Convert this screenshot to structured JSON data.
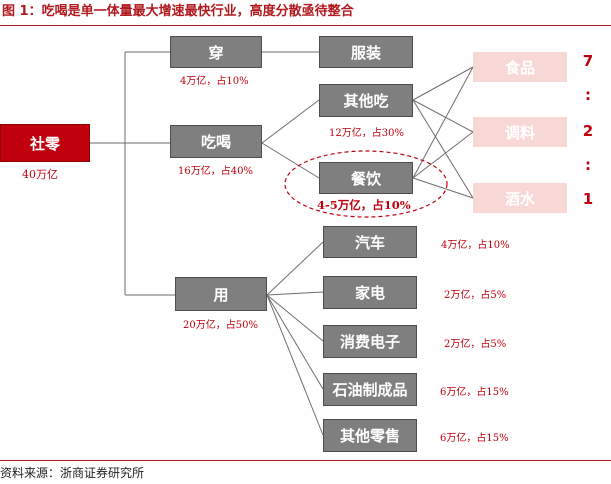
{
  "title": "图 1：吃喝是单一体量最大增速最快行业，高度分散亟待整合",
  "source": "资料来源：浙商证券研究所",
  "root": {
    "label": "社零",
    "note": "40万亿"
  },
  "level1": {
    "wear": {
      "label": "穿",
      "note": "4万亿，占10%"
    },
    "eat": {
      "label": "吃喝",
      "note": "16万亿，占40%"
    },
    "use": {
      "label": "用",
      "note": "20万亿，占50%"
    }
  },
  "level2": {
    "clothing": {
      "label": "服装"
    },
    "other_eat": {
      "label": "其他吃",
      "note": "12万亿，占30%"
    },
    "catering": {
      "label": "餐饮",
      "note": "4-5万亿，占10%"
    },
    "car": {
      "label": "汽车",
      "note": "4万亿，占10%"
    },
    "appliance": {
      "label": "家电",
      "note": "2万亿，占5%"
    },
    "electronics": {
      "label": "消费电子",
      "note": "2万亿，占5%"
    },
    "oil": {
      "label": "石油制成品",
      "note": "6万亿，占15%"
    },
    "other_retail": {
      "label": "其他零售",
      "note": "6万亿，占15%"
    }
  },
  "level3": {
    "food": {
      "label": "食品",
      "ratio": "7"
    },
    "seasoning": {
      "label": "调料",
      "ratio": "2"
    },
    "liquor": {
      "label": "酒水",
      "ratio": "1"
    },
    "separator": ":"
  },
  "colors": {
    "accent": "#c0000d",
    "box_gray": "#7f7f7f",
    "box_pink": "#f8d7d7",
    "title": "#b0191e"
  }
}
